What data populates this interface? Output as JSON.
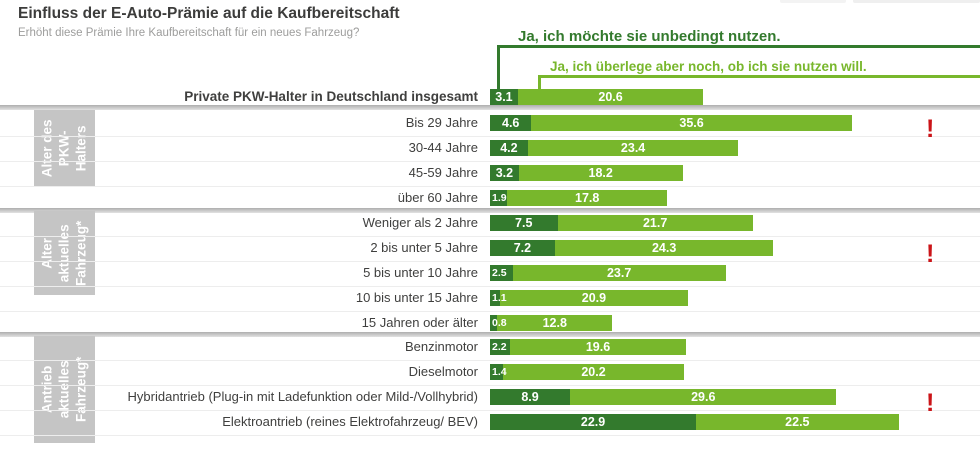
{
  "chart_data": {
    "type": "bar",
    "orientation": "horizontal",
    "stacked": true,
    "unit": "percent",
    "grid": false,
    "xlim": [
      0,
      50
    ],
    "title": "Einfluss der E-Auto-Prämie auf die Kaufbereitschaft",
    "subtitle": "Erhöht diese Prämie Ihre Kaufbereitschaft für ein neues Fahrzeug?",
    "legend_position": "top-right-brackets",
    "series": [
      {
        "name": "Ja, ich möchte sie unbedingt nutzen.",
        "color": "#337a2d"
      },
      {
        "name": "Ja, ich überlege aber noch, ob ich sie nutzen will.",
        "color": "#78b72c"
      }
    ],
    "total_row": {
      "label": "Private PKW-Halter in Deutschland insgesamt",
      "values": [
        3.1,
        20.6
      ]
    },
    "groups": [
      {
        "label": "Alter des PKW-Halters",
        "label_lines": "Alter des\nPKW-\nHalters",
        "rows": [
          {
            "label": "Bis 29 Jahre",
            "values": [
              4.6,
              35.6
            ],
            "highlight": true
          },
          {
            "label": "30-44 Jahre",
            "values": [
              4.2,
              23.4
            ],
            "highlight": false
          },
          {
            "label": "45-59 Jahre",
            "values": [
              3.2,
              18.2
            ],
            "highlight": false
          },
          {
            "label": "über 60 Jahre",
            "values": [
              1.9,
              17.8
            ],
            "highlight": false
          }
        ]
      },
      {
        "label": "Alter aktuelles Fahrzeug*",
        "label_lines": "Alter\naktuelles\nFahrzeug*",
        "rows": [
          {
            "label": "Weniger als 2 Jahre",
            "values": [
              7.5,
              21.7
            ],
            "highlight": false
          },
          {
            "label": "2 bis unter 5 Jahre",
            "values": [
              7.2,
              24.3
            ],
            "highlight": true
          },
          {
            "label": "5 bis unter 10 Jahre",
            "values": [
              2.5,
              23.7
            ],
            "highlight": false
          },
          {
            "label": "10 bis unter 15 Jahre",
            "values": [
              1.1,
              20.9
            ],
            "highlight": false
          },
          {
            "label": "15 Jahren oder älter",
            "values": [
              0.8,
              12.8
            ],
            "highlight": false
          }
        ]
      },
      {
        "label": "Antrieb aktuelles Fahrzeug*",
        "label_lines": "Antrieb\naktuelles\nFahrzeug*",
        "rows": [
          {
            "label": "Benzinmotor",
            "values": [
              2.2,
              19.6
            ],
            "highlight": false
          },
          {
            "label": "Dieselmotor",
            "values": [
              1.4,
              20.2
            ],
            "highlight": false
          },
          {
            "label": "Hybridantrieb (Plug-in mit Ladefunktion oder Mild-/Vollhybrid)",
            "values": [
              8.9,
              29.6
            ],
            "highlight": true
          },
          {
            "label": "Elektroantrieb (reines Elektrofahrzeug/ BEV)",
            "values": [
              22.9,
              22.5
            ],
            "highlight": false
          }
        ]
      }
    ],
    "highlight_marker": "!",
    "highlight_color": "#cb1418",
    "group_box_color": "#c5c5c5"
  }
}
